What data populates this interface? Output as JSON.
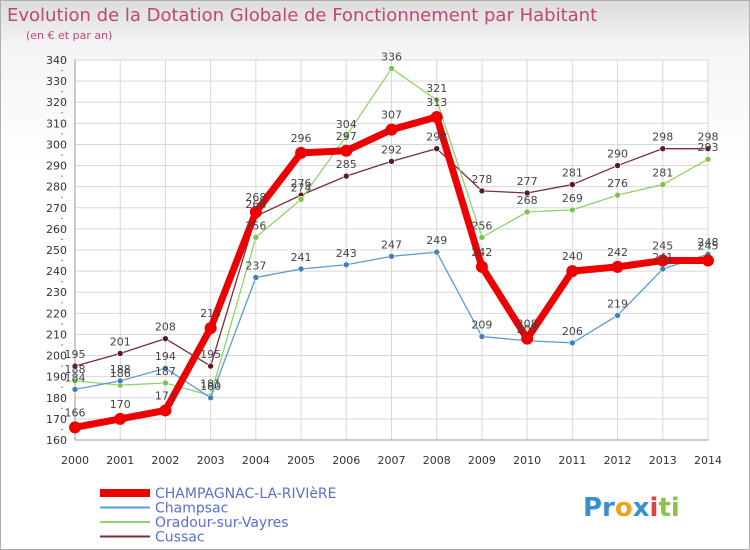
{
  "title": "Evolution de la Dotation Globale de Fonctionnement par Habitant",
  "subtitle": "(en € et par an)",
  "logo": {
    "parts": [
      "Pr",
      "o",
      "x",
      "i",
      "ti"
    ],
    "colors": [
      "#3a8fd0",
      "#f0a020",
      "#3a8fd0",
      "#e04040",
      "#8bc34a"
    ]
  },
  "chart_data": {
    "type": "line",
    "title": "Evolution de la Dotation Globale de Fonctionnement par Habitant",
    "ylabel": "(en € et par an)",
    "xlabel": "",
    "x": [
      2000,
      2001,
      2002,
      2003,
      2004,
      2005,
      2006,
      2007,
      2008,
      2009,
      2010,
      2011,
      2012,
      2013,
      2014
    ],
    "ylim": [
      160,
      340
    ],
    "yticks": [
      160,
      170,
      180,
      190,
      200,
      210,
      220,
      230,
      240,
      250,
      260,
      270,
      280,
      290,
      300,
      310,
      320,
      330,
      340
    ],
    "grid": true,
    "legend_position": "bottom-left",
    "series": [
      {
        "name": "CHAMPAGNAC-LA-RIVIèRE",
        "color": "#ee0000",
        "dot": "#ee0000",
        "width": 7,
        "radius": 6,
        "values": [
          166,
          170,
          174,
          213,
          268,
          296,
          297,
          307,
          313,
          242,
          208,
          240,
          242,
          245,
          245
        ]
      },
      {
        "name": "Champsac",
        "color": "#5b9bd5",
        "dot": "#3f7fc0",
        "width": 1.3,
        "radius": 3,
        "values": [
          184,
          188,
          194,
          180,
          237,
          241,
          243,
          247,
          249,
          209,
          207,
          206,
          219,
          241,
          248
        ]
      },
      {
        "name": "Oradour-sur-Vayres",
        "color": "#8fd46a",
        "dot": "#7cc44e",
        "width": 1.3,
        "radius": 3,
        "values": [
          188,
          186,
          187,
          181,
          256,
          274,
          304,
          336,
          321,
          256,
          268,
          269,
          276,
          281,
          293
        ]
      },
      {
        "name": "Cussac",
        "color": "#7a2e36",
        "dot": "#5a1a20",
        "width": 1.3,
        "radius": 3,
        "values": [
          195,
          201,
          208,
          195,
          266,
          276,
          285,
          292,
          298,
          278,
          277,
          281,
          290,
          298,
          298
        ]
      }
    ]
  }
}
